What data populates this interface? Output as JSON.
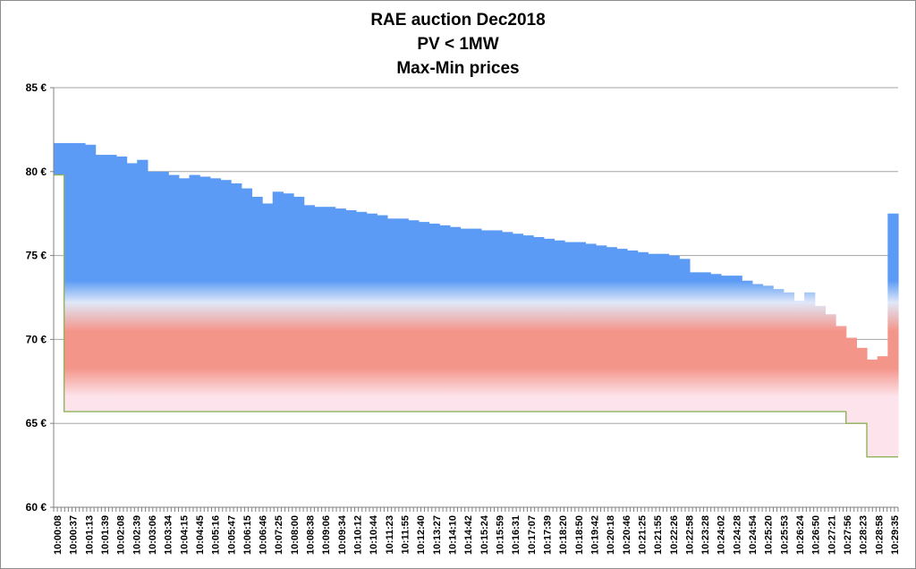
{
  "chart_data": {
    "type": "area",
    "title": [
      "RAE auction Dec2018",
      "PV < 1MW",
      "Max-Min prices"
    ],
    "ylim": [
      60,
      85
    ],
    "y_ticks": [
      "60 €",
      "65 €",
      "70 €",
      "75 €",
      "80 €",
      "85 €"
    ],
    "grid": true,
    "legend": "none",
    "colors": {
      "max_band": "#5b9bf5",
      "mid_band": "#f4958a",
      "low_band": "#fde4ec",
      "min_line": "#8fb35a",
      "axis": "#808080",
      "grid": "#a6a6a6"
    },
    "x_tick_labels": [
      "10:00:08",
      "10:00:37",
      "10:01:13",
      "10:01:39",
      "10:02:08",
      "10:02:39",
      "10:03:06",
      "10:03:34",
      "10:04:15",
      "10:04:45",
      "10:05:16",
      "10:05:47",
      "10:06:15",
      "10:06:46",
      "10:07:25",
      "10:08:00",
      "10:08:38",
      "10:09:06",
      "10:09:34",
      "10:10:12",
      "10:10:44",
      "10:11:23",
      "10:11:55",
      "10:12:40",
      "10:13:27",
      "10:14:10",
      "10:14:42",
      "10:15:24",
      "10:15:59",
      "10:16:31",
      "10:17:07",
      "10:17:39",
      "10:18:20",
      "10:18:50",
      "10:19:42",
      "10:20:18",
      "10:20:46",
      "10:21:25",
      "10:21:55",
      "10:22:26",
      "10:22:58",
      "10:23:28",
      "10:24:02",
      "10:24:28",
      "10:24:54",
      "10:25:20",
      "10:25:53",
      "10:26:24",
      "10:26:50",
      "10:27:21",
      "10:27:56",
      "10:28:23",
      "10:28:58",
      "10:29:35"
    ],
    "series": [
      {
        "role": "max",
        "values": [
          81.7,
          81.7,
          81.7,
          81.6,
          81.0,
          81.0,
          80.9,
          80.5,
          80.7,
          80.0,
          80.0,
          79.8,
          79.6,
          79.8,
          79.7,
          79.6,
          79.5,
          79.3,
          79.0,
          78.5,
          78.1,
          78.8,
          78.7,
          78.5,
          78.0,
          77.9,
          77.9,
          77.8,
          77.7,
          77.6,
          77.5,
          77.4,
          77.2,
          77.2,
          77.1,
          77.0,
          76.9,
          76.8,
          76.7,
          76.6,
          76.6,
          76.5,
          76.5,
          76.4,
          76.3,
          76.2,
          76.1,
          76.0,
          75.9,
          75.8,
          75.8,
          75.7,
          75.6,
          75.5,
          75.4,
          75.3,
          75.2,
          75.1,
          75.1,
          75.0,
          74.8,
          74.0,
          74.0,
          73.9,
          73.8,
          73.8,
          73.5,
          73.3,
          73.2,
          73.0,
          72.8,
          72.3,
          72.8,
          72.0,
          71.5,
          70.8,
          70.1,
          69.5,
          68.8,
          69.0,
          77.5
        ]
      },
      {
        "role": "min",
        "values": [
          79.8,
          65.7,
          65.7,
          65.7,
          65.7,
          65.7,
          65.7,
          65.7,
          65.7,
          65.7,
          65.7,
          65.7,
          65.7,
          65.7,
          65.7,
          65.7,
          65.7,
          65.7,
          65.7,
          65.7,
          65.7,
          65.7,
          65.7,
          65.7,
          65.7,
          65.7,
          65.7,
          65.7,
          65.7,
          65.7,
          65.7,
          65.7,
          65.7,
          65.7,
          65.7,
          65.7,
          65.7,
          65.7,
          65.7,
          65.7,
          65.7,
          65.7,
          65.7,
          65.7,
          65.7,
          65.7,
          65.7,
          65.7,
          65.7,
          65.7,
          65.7,
          65.7,
          65.7,
          65.7,
          65.7,
          65.7,
          65.7,
          65.7,
          65.7,
          65.7,
          65.7,
          65.7,
          65.7,
          65.7,
          65.7,
          65.7,
          65.7,
          65.7,
          65.7,
          65.7,
          65.7,
          65.7,
          65.7,
          65.7,
          65.7,
          65.7,
          65.0,
          65.0,
          63.0,
          63.0,
          63.0
        ]
      }
    ]
  }
}
